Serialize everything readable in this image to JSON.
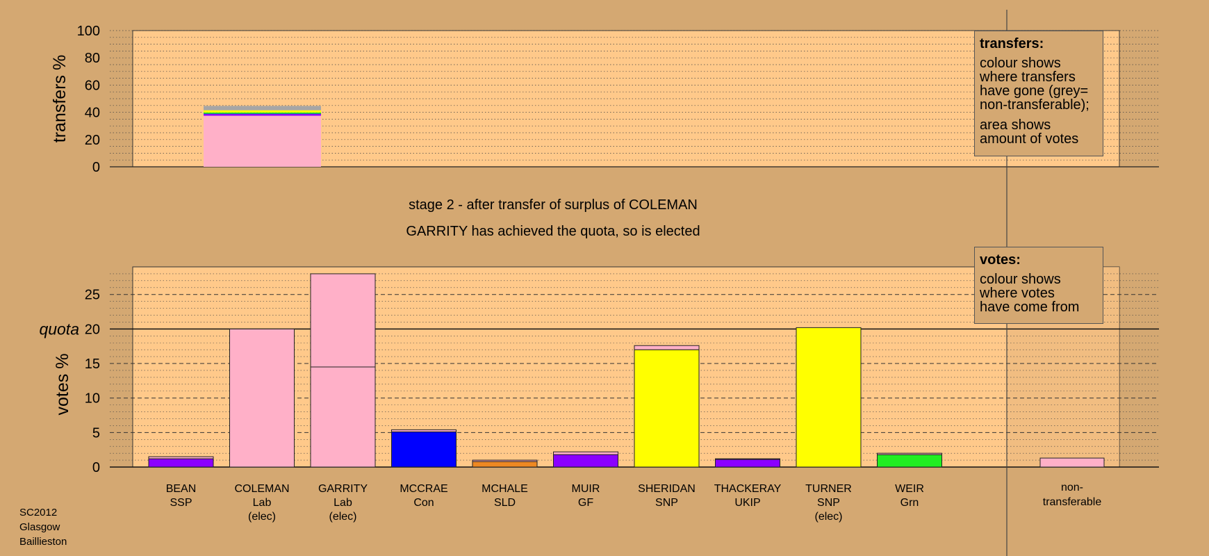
{
  "footer": {
    "line1": "SC2012",
    "line2": "Glasgow",
    "line3": "Baillieston"
  },
  "status": {
    "line1": "stage 2 - after transfer of surplus of COLEMAN",
    "line2": "GARRITY has achieved the quota, so is elected"
  },
  "legend_transfers": {
    "title": "transfers:",
    "lines1": [
      "colour shows",
      "where transfers",
      "have gone (grey=",
      "non-transferable);"
    ],
    "lines2": [
      "area shows",
      "amount of votes"
    ]
  },
  "legend_votes": {
    "title": "votes:",
    "lines": [
      "colour shows",
      "where votes",
      "have come from"
    ]
  },
  "colors": {
    "background": "#d4a872",
    "plot_background": "#ffc98a",
    "SSP": "#8b00ff",
    "Lab": "#ffb0c8",
    "Con": "#0000ff",
    "SLD": "#ee8822",
    "GF": "#8b00ff",
    "SNP": "#ffff00",
    "UKIP": "#8b00ff",
    "Grn": "#22ee22",
    "nontransferable": "#a6a6a6"
  },
  "chart_data": [
    {
      "type": "bar",
      "name": "transfers",
      "ylabel": "transfers %",
      "ylim": [
        0,
        100
      ],
      "yticks": [
        0,
        20,
        40,
        60,
        80,
        100
      ],
      "grid": true,
      "stack_order": [
        "Lab",
        "SSP",
        "Con",
        "Grn",
        "SNP",
        "nontransferable"
      ],
      "transfer_from": "COLEMAN",
      "segments": [
        {
          "party": "Lab",
          "value": 37.5
        },
        {
          "party": "SSP",
          "value": 1.2
        },
        {
          "party": "Con",
          "value": 0.3
        },
        {
          "party": "Grn",
          "value": 0.9
        },
        {
          "party": "SNP",
          "value": 1.6
        },
        {
          "party": "nontransferable",
          "value": 3.2
        }
      ],
      "total": 44.7
    },
    {
      "type": "bar",
      "name": "votes",
      "ylabel": "votes %",
      "quota_label": "quota",
      "quota": 20,
      "ylim": [
        0,
        29
      ],
      "yticks": [
        0,
        5,
        10,
        15,
        20,
        25
      ],
      "grid": true,
      "categories": [
        {
          "name": "BEAN",
          "party": "SSP",
          "elec": "",
          "segments": [
            [
              "SSP",
              1.2
            ],
            [
              "Lab",
              0.3
            ]
          ]
        },
        {
          "name": "COLEMAN",
          "party": "Lab",
          "elec": "(elec)",
          "segments": [
            [
              "Lab",
              20.0
            ]
          ]
        },
        {
          "name": "GARRITY",
          "party": "Lab",
          "elec": "(elec)",
          "segments": [
            [
              "Lab",
              14.5
            ],
            [
              "Lab",
              13.5
            ]
          ]
        },
        {
          "name": "MCCRAE",
          "party": "Con",
          "elec": "",
          "segments": [
            [
              "Con",
              5.1
            ],
            [
              "Lab",
              0.3
            ]
          ]
        },
        {
          "name": "MCHALE",
          "party": "SLD",
          "elec": "",
          "segments": [
            [
              "SLD",
              0.8
            ],
            [
              "Lab",
              0.2
            ]
          ]
        },
        {
          "name": "MUIR",
          "party": "GF",
          "elec": "",
          "segments": [
            [
              "GF",
              1.8
            ],
            [
              "Lab",
              0.4
            ]
          ]
        },
        {
          "name": "SHERIDAN",
          "party": "SNP",
          "elec": "",
          "segments": [
            [
              "SNP",
              17.0
            ],
            [
              "Lab",
              0.6
            ]
          ]
        },
        {
          "name": "THACKERAY",
          "party": "UKIP",
          "elec": "",
          "segments": [
            [
              "UKIP",
              1.1
            ],
            [
              "Lab",
              0.1
            ]
          ]
        },
        {
          "name": "TURNER",
          "party": "SNP",
          "elec": "(elec)",
          "segments": [
            [
              "SNP",
              20.2
            ]
          ]
        },
        {
          "name": "WEIR",
          "party": "Grn",
          "elec": "",
          "segments": [
            [
              "Grn",
              1.8
            ],
            [
              "Lab",
              0.2
            ]
          ]
        }
      ],
      "nontransferable": {
        "label1": "non-",
        "label2": "transferable",
        "value": 1.3,
        "color_party": "Lab"
      }
    }
  ]
}
